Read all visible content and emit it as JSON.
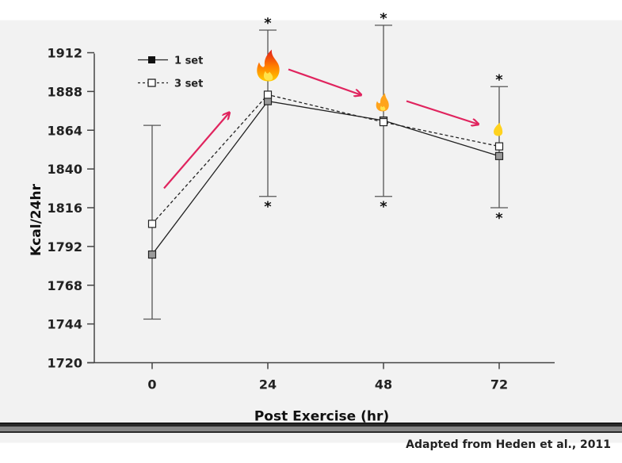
{
  "chart_data": {
    "type": "line",
    "title": "",
    "xlabel": "Post Exercise (hr)",
    "ylabel": "Kcal/24hr",
    "categories": [
      "0",
      "24",
      "48",
      "72"
    ],
    "ylim": [
      1720,
      1912
    ],
    "yticks": [
      1720,
      1744,
      1768,
      1792,
      1816,
      1840,
      1864,
      1888,
      1912
    ],
    "series": [
      {
        "name": "1 set",
        "style": "solid",
        "marker": "filled-square",
        "values": [
          1787,
          1882,
          1870,
          1848
        ]
      },
      {
        "name": "3 set",
        "style": "dashed",
        "marker": "open-square",
        "values": [
          1806,
          1886,
          1869,
          1854
        ]
      }
    ],
    "error_bars": [
      {
        "upper": 1867,
        "lower": 1747
      },
      {
        "upper": 1926,
        "lower": 1823
      },
      {
        "upper": 1929,
        "lower": 1823
      },
      {
        "upper": 1891,
        "lower": 1816
      }
    ],
    "significance": {
      "marker": "*",
      "points": [
        "24",
        "48",
        "72"
      ]
    },
    "annotations": {
      "flame_icons": [
        "large-flame-icon",
        "medium-flame-icon",
        "small-flame-icon"
      ],
      "arrow_color": "#e0245e"
    }
  },
  "source_credit": "Adapted from Heden et al., 2011",
  "colors": {
    "panel_bg": "#f2f2f2",
    "line": "#222222",
    "marker_fill": "#9a9a9a",
    "arrow": "#e0245e"
  }
}
